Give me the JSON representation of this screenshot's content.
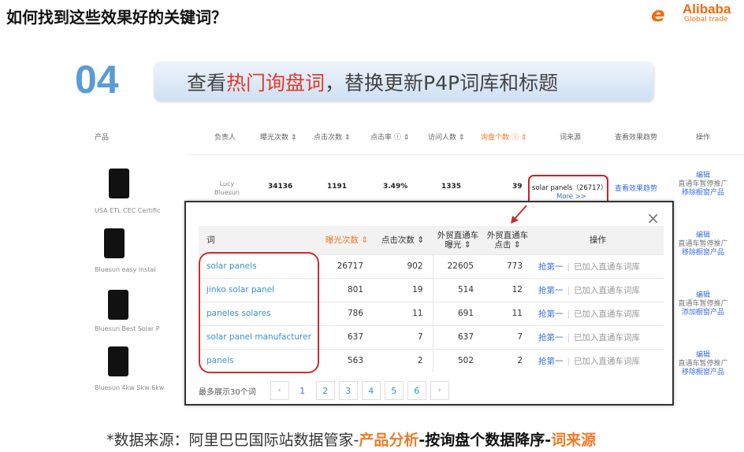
{
  "slide": {
    "title": "如何找到这些效果好的关键词？",
    "logo": {
      "mark": "e",
      "name": "Alibaba",
      "sub": "Global trade"
    },
    "step_number": "04",
    "banner": {
      "pre": "查看",
      "highlight": "热门询盘词",
      "post": "，替换更新P4P词库和标题"
    },
    "footer": {
      "p1": "*数据来源：阿里巴巴国际站数据管家-",
      "p2": "产品分析",
      "p3": "-",
      "p4": "按询盘个数据降序",
      "p5": "-",
      "p6": "词来源"
    }
  },
  "colors": {
    "accent_blue": "#5b9bd5",
    "highlight_red": "#e03a2a",
    "orange": "#f07b28",
    "link_blue": "#3a6fd8"
  },
  "bg_table": {
    "headers": [
      "产品",
      "负责人",
      "曝光次数 ⇕",
      "点击次数 ⇕",
      "点击率 ⓘ ⇕",
      "访问人数 ⇕",
      "询盘个数 ⓘ ⇕",
      "词来源",
      "查看效果趋势",
      "操作"
    ],
    "row1": {
      "owner": "Lucy Bluesun",
      "exposure": "34136",
      "clicks": "1191",
      "ctr": "3.49%",
      "visitors": "1335",
      "inquiries": "39",
      "source": "solar panels（26717）",
      "more": "More >>",
      "trend": "查看效果趋势"
    },
    "products": [
      "USA ETL CEC Certific",
      "Bluesun easy instal",
      "Bluesun Best Solar P",
      "Bluesun 4kw 5kw 6kw"
    ],
    "ops": [
      {
        "edit": "编辑",
        "pause": "直通车暂停推广",
        "window": "移除橱窗产品"
      },
      {
        "edit": "编辑",
        "pause": "直通车暂停推广",
        "window": "移除橱窗产品"
      },
      {
        "edit": "编辑",
        "pause": "直通车暂停推广",
        "window": "添加橱窗产品"
      },
      {
        "edit": "编辑",
        "pause": "直通车暂停推广",
        "window": "移除橱窗产品"
      }
    ]
  },
  "popup": {
    "close": "×",
    "headers": {
      "word": "词",
      "exposure": "曝光次数 ⇕",
      "clicks": "点击次数 ⇕",
      "p4p_exposure_1": "外贸直通车",
      "p4p_exposure_2": "曝光 ⇕",
      "p4p_clicks_1": "外贸直通车",
      "p4p_clicks_2": "点击 ⇕",
      "action": "操作"
    },
    "rows": [
      {
        "word": "solar panels",
        "exposure": "26717",
        "clicks": "902",
        "p4p_exposure": "22605",
        "p4p_clicks": "773",
        "action1": "抢第一",
        "action2": "已加入直通车词库"
      },
      {
        "word": "jinko solar panel",
        "exposure": "801",
        "clicks": "19",
        "p4p_exposure": "514",
        "p4p_clicks": "12",
        "action1": "抢第一",
        "action2": "已加入直通车词库"
      },
      {
        "word": "paneles solares",
        "exposure": "786",
        "clicks": "11",
        "p4p_exposure": "691",
        "p4p_clicks": "11",
        "action1": "抢第一",
        "action2": "已加入直通车词库"
      },
      {
        "word": "solar panel manufacturer",
        "exposure": "637",
        "clicks": "7",
        "p4p_exposure": "637",
        "p4p_clicks": "7",
        "action1": "抢第一",
        "action2": "已加入直通车词库"
      },
      {
        "word": "panels",
        "exposure": "563",
        "clicks": "2",
        "p4p_exposure": "502",
        "p4p_clicks": "2",
        "action1": "抢第一",
        "action2": "已加入直通车词库"
      }
    ],
    "pager": {
      "label": "最多展示30个词",
      "prev": "‹",
      "next": "›",
      "pages": [
        "1",
        "2",
        "3",
        "4",
        "5",
        "6"
      ],
      "current": "1"
    }
  }
}
